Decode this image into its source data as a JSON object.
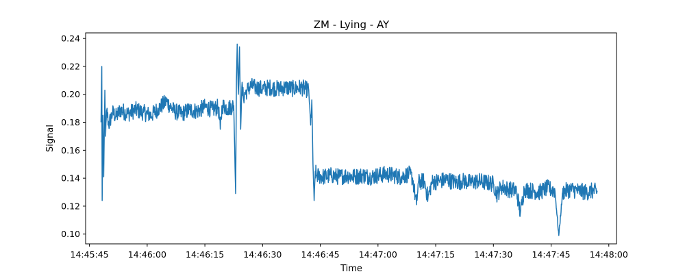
{
  "chart_data": {
    "type": "line",
    "title": "ZM - Lying - AY",
    "xlabel": "Time",
    "ylabel": "Signal",
    "x_tick_labels": [
      "14:45:45",
      "14:46:00",
      "14:46:15",
      "14:46:30",
      "14:46:45",
      "14:47:00",
      "14:47:15",
      "14:47:30",
      "14:47:45",
      "14:48:00"
    ],
    "y_ticks": [
      0.1,
      0.12,
      0.14,
      0.16,
      0.18,
      0.2,
      0.22,
      0.24
    ],
    "y_tick_labels": [
      "0.10",
      "0.12",
      "0.14",
      "0.16",
      "0.18",
      "0.20",
      "0.22",
      "0.24"
    ],
    "xlim": [
      "14:45:44",
      "14:48:02"
    ],
    "ylim": [
      0.093,
      0.244
    ],
    "grid": false,
    "legend": "none",
    "series": [
      {
        "color": "#1f77b4",
        "points": [
          [
            "14:45:48.0",
            0.18
          ],
          [
            "14:45:48.2",
            0.22
          ],
          [
            "14:45:48.3",
            0.124
          ],
          [
            "14:45:48.5",
            0.185
          ],
          [
            "14:45:48.7",
            0.141
          ],
          [
            "14:45:49.0",
            0.203
          ],
          [
            "14:45:49.2",
            0.17
          ],
          [
            "14:45:49.5",
            0.189
          ],
          [
            "14:45:50.0",
            0.178
          ],
          [
            "14:45:51.0",
            0.187
          ],
          [
            "14:45:52.0",
            0.184
          ],
          [
            "14:45:53.0",
            0.189
          ],
          [
            "14:45:55.0",
            0.186
          ],
          [
            "14:45:57.0",
            0.189
          ],
          [
            "14:45:59.0",
            0.187
          ],
          [
            "14:46:01.0",
            0.185
          ],
          [
            "14:46:03.0",
            0.19
          ],
          [
            "14:46:05.0",
            0.195
          ],
          [
            "14:46:07.0",
            0.188
          ],
          [
            "14:46:09.0",
            0.186
          ],
          [
            "14:46:11.0",
            0.189
          ],
          [
            "14:46:13.0",
            0.188
          ],
          [
            "14:46:15.0",
            0.191
          ],
          [
            "14:46:17.0",
            0.189
          ],
          [
            "14:46:18.5",
            0.191
          ],
          [
            "14:46:19.0",
            0.175
          ],
          [
            "14:46:19.5",
            0.192
          ],
          [
            "14:46:21.0",
            0.19
          ],
          [
            "14:46:22.5",
            0.192
          ],
          [
            "14:46:23.0",
            0.129
          ],
          [
            "14:46:23.2",
            0.21
          ],
          [
            "14:46:23.4",
            0.236
          ],
          [
            "14:46:23.7",
            0.2
          ],
          [
            "14:46:24.0",
            0.234
          ],
          [
            "14:46:24.3",
            0.175
          ],
          [
            "14:46:24.6",
            0.205
          ],
          [
            "14:46:25.0",
            0.198
          ],
          [
            "14:46:26.0",
            0.203
          ],
          [
            "14:46:27.0",
            0.206
          ],
          [
            "14:46:28.0",
            0.205
          ],
          [
            "14:46:30.0",
            0.204
          ],
          [
            "14:46:32.0",
            0.205
          ],
          [
            "14:46:34.0",
            0.204
          ],
          [
            "14:46:36.0",
            0.205
          ],
          [
            "14:46:38.0",
            0.204
          ],
          [
            "14:46:40.0",
            0.205
          ],
          [
            "14:46:42.0",
            0.203
          ],
          [
            "14:46:42.5",
            0.178
          ],
          [
            "14:46:42.8",
            0.196
          ],
          [
            "14:46:43.1",
            0.15
          ],
          [
            "14:46:43.4",
            0.124
          ],
          [
            "14:46:43.7",
            0.145
          ],
          [
            "14:46:44.0",
            0.142
          ],
          [
            "14:46:46.0",
            0.141
          ],
          [
            "14:46:48.0",
            0.142
          ],
          [
            "14:46:50.0",
            0.141
          ],
          [
            "14:46:52.0",
            0.142
          ],
          [
            "14:46:54.0",
            0.141
          ],
          [
            "14:46:56.0",
            0.142
          ],
          [
            "14:46:58.0",
            0.141
          ],
          [
            "14:47:00.0",
            0.142
          ],
          [
            "14:47:02.0",
            0.143
          ],
          [
            "14:47:04.0",
            0.142
          ],
          [
            "14:47:06.0",
            0.141
          ],
          [
            "14:47:08.0",
            0.143
          ],
          [
            "14:47:09.0",
            0.14
          ],
          [
            "14:47:10.0",
            0.121
          ],
          [
            "14:47:10.5",
            0.137
          ],
          [
            "14:47:12.0",
            0.138
          ],
          [
            "14:47:13.0",
            0.126
          ],
          [
            "14:47:14.0",
            0.137
          ],
          [
            "14:47:16.0",
            0.138
          ],
          [
            "14:47:18.0",
            0.139
          ],
          [
            "14:47:20.0",
            0.137
          ],
          [
            "14:47:22.0",
            0.138
          ],
          [
            "14:47:24.0",
            0.137
          ],
          [
            "14:47:26.0",
            0.138
          ],
          [
            "14:47:28.0",
            0.137
          ],
          [
            "14:47:30.0",
            0.136
          ],
          [
            "14:47:31.0",
            0.128
          ],
          [
            "14:47:32.0",
            0.134
          ],
          [
            "14:47:34.0",
            0.132
          ],
          [
            "14:47:36.0",
            0.131
          ],
          [
            "14:47:37.0",
            0.115
          ],
          [
            "14:47:38.0",
            0.132
          ],
          [
            "14:47:40.0",
            0.131
          ],
          [
            "14:47:42.0",
            0.13
          ],
          [
            "14:47:44.0",
            0.133
          ],
          [
            "14:47:46.0",
            0.131
          ],
          [
            "14:47:47.0",
            0.099
          ],
          [
            "14:47:48.0",
            0.13
          ],
          [
            "14:47:50.0",
            0.132
          ],
          [
            "14:47:52.0",
            0.131
          ],
          [
            "14:47:54.0",
            0.13
          ],
          [
            "14:47:56.0",
            0.131
          ],
          [
            "14:47:57.0",
            0.13
          ]
        ]
      }
    ]
  }
}
